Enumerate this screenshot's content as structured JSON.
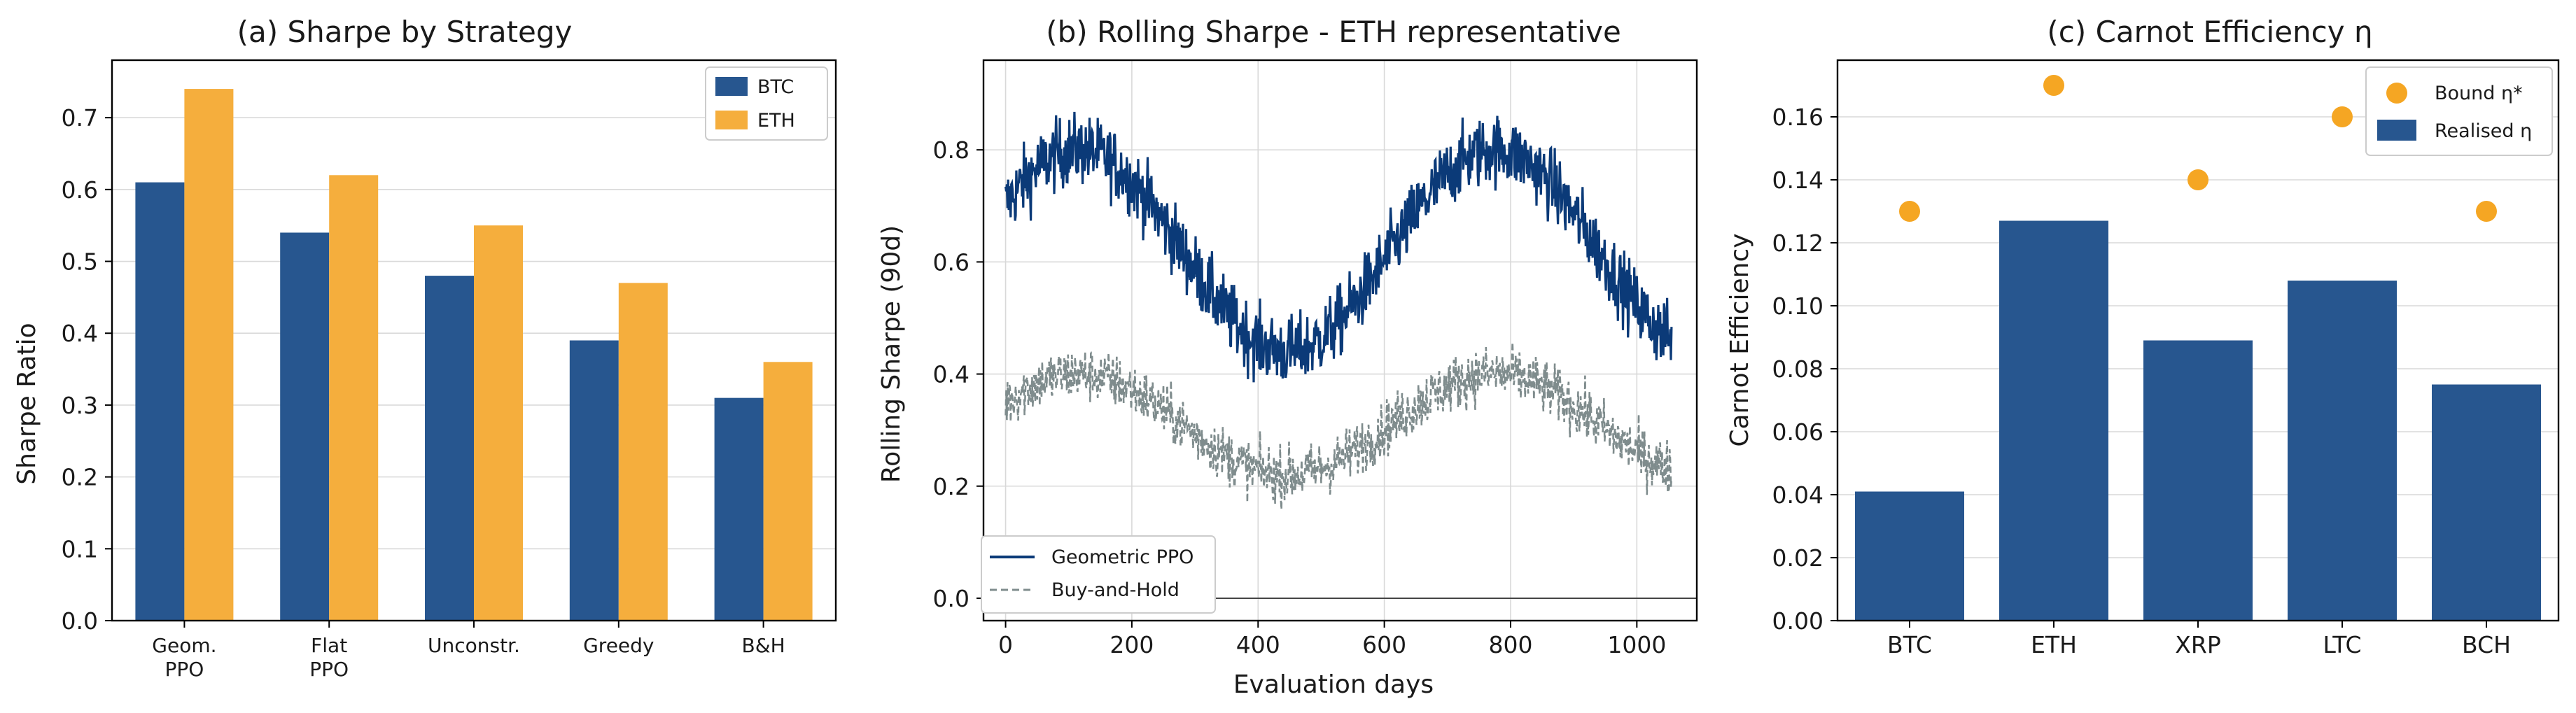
{
  "colors": {
    "btc": "#27568f",
    "eth": "#f5ae3d",
    "ppo_line": "#0b3a78",
    "bh_line": "#7f8c8d",
    "bound_dot": "#f5a623",
    "realised_bar": "#27568f",
    "zero_line": "#444444"
  },
  "chart_data": [
    {
      "type": "bar",
      "title": "(a) Sharpe by Strategy",
      "xlabel": "",
      "ylabel": "Sharpe Ratio",
      "categories": [
        "Geom.\nPPO",
        "Flat\nPPO",
        "Unconstr.",
        "Greedy",
        "B&H"
      ],
      "series": [
        {
          "name": "BTC",
          "values": [
            0.61,
            0.54,
            0.48,
            0.39,
            0.31
          ]
        },
        {
          "name": "ETH",
          "values": [
            0.74,
            0.62,
            0.55,
            0.47,
            0.36
          ]
        }
      ],
      "ylim": [
        0.0,
        0.78
      ],
      "yticks": [
        0.0,
        0.1,
        0.2,
        0.3,
        0.4,
        0.5,
        0.6,
        0.7
      ],
      "grid": "y",
      "legend": "top-right"
    },
    {
      "type": "line",
      "title": "(b) Rolling Sharpe - ETH representative",
      "xlabel": "Evaluation days",
      "ylabel": "Rolling Sharpe (90d)",
      "xlim": [
        -35,
        1095
      ],
      "ylim": [
        -0.04,
        0.96
      ],
      "xticks": [
        0,
        200,
        400,
        600,
        800,
        1000
      ],
      "yticks": [
        0.0,
        0.2,
        0.4,
        0.6,
        0.8
      ],
      "grid": "both",
      "legend": "bottom-left",
      "reference_line_y": 0.0,
      "series": [
        {
          "name": "Geometric PPO",
          "style": "solid",
          "x_start": 0,
          "x_end": 1055,
          "mean": 0.62,
          "amplitude": 0.18,
          "period_days": 660,
          "phase_peak_day": 115,
          "noise": 0.045
        },
        {
          "name": "Buy-and-Hold",
          "style": "dashed",
          "x_start": 0,
          "x_end": 1055,
          "mean": 0.31,
          "amplitude": 0.09,
          "period_days": 660,
          "phase_peak_day": 115,
          "noise": 0.035
        }
      ]
    },
    {
      "type": "bar",
      "title": "(c) Carnot Efficiency η",
      "xlabel": "",
      "ylabel": "Carnot Efficiency",
      "categories": [
        "BTC",
        "ETH",
        "XRP",
        "LTC",
        "BCH"
      ],
      "series": [
        {
          "name": "Realised η",
          "values": [
            0.041,
            0.127,
            0.089,
            0.108,
            0.075
          ]
        },
        {
          "name": "Bound η*",
          "marker": "dot",
          "values": [
            0.13,
            0.17,
            0.14,
            0.16,
            0.13
          ]
        }
      ],
      "ylim": [
        0.0,
        0.178
      ],
      "yticks": [
        0.0,
        0.02,
        0.04,
        0.06,
        0.08,
        0.1,
        0.12,
        0.14,
        0.16
      ],
      "grid": "y",
      "legend": "top-right"
    }
  ]
}
